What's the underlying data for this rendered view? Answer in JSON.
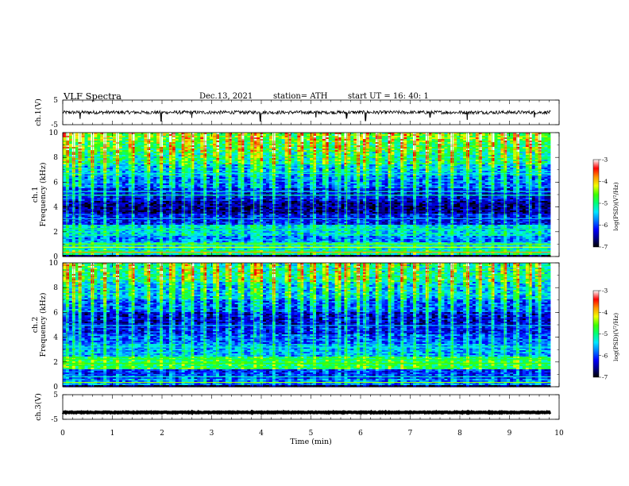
{
  "header": {
    "title": "VLF  Spectra",
    "date": "Dec.13, 2021",
    "station": "station= ATH",
    "start": "start  UT  =    16: 40: 1"
  },
  "colors": {
    "colormap": [
      "#000000",
      "#00008a",
      "#0000ff",
      "#0078ff",
      "#00e8ff",
      "#00ff7a",
      "#3cff00",
      "#f0ff00",
      "#ff9600",
      "#ff0000",
      "#ffffff"
    ],
    "trace": "#000000"
  },
  "chart_data": [
    {
      "type": "line",
      "name": "ch1-waveform",
      "ylabel": "ch.1(V)",
      "ylim": [
        -5,
        5
      ],
      "yticks": [
        {
          "v": 5,
          "label": "5"
        },
        {
          "v": -5,
          "label": "-5"
        }
      ],
      "xlim": [
        0,
        10
      ],
      "xmax_data": 9.83,
      "baseline": 0,
      "noise_amplitude": 0.7,
      "spikes": [
        {
          "x": 0.35,
          "y": -2.6
        },
        {
          "x": 1.98,
          "y": -3.6
        },
        {
          "x": 2.6,
          "y": -2.2
        },
        {
          "x": 3.98,
          "y": -3.6
        },
        {
          "x": 5.1,
          "y": -2.0
        },
        {
          "x": 5.72,
          "y": -2.4
        },
        {
          "x": 6.1,
          "y": -3.4
        },
        {
          "x": 7.4,
          "y": -2.0
        },
        {
          "x": 8.15,
          "y": -3.0
        },
        {
          "x": 9.5,
          "y": -2.0
        }
      ]
    },
    {
      "type": "heatmap",
      "name": "ch1-spectrogram",
      "ylabel": "ch.1\nFrequency  (kHz)",
      "xlim": [
        0,
        10
      ],
      "xmax_data": 9.83,
      "ylim": [
        0,
        10
      ],
      "yticks": [
        {
          "v": 0,
          "label": "0"
        },
        {
          "v": 2,
          "label": "2"
        },
        {
          "v": 4,
          "label": "4"
        },
        {
          "v": 6,
          "label": "6"
        },
        {
          "v": 8,
          "label": "8"
        },
        {
          "v": 10,
          "label": "10"
        }
      ],
      "colorbar": {
        "label": "log(PSD)(V²/Hz)",
        "range": [
          -7,
          -3
        ],
        "ticks": [
          {
            "v": -3,
            "label": "-3"
          },
          {
            "v": -4,
            "label": "-4"
          },
          {
            "v": -5,
            "label": "-5"
          },
          {
            "v": -6,
            "label": "-6"
          },
          {
            "v": -7,
            "label": "-7"
          }
        ]
      },
      "bands": [
        {
          "f": [
            0,
            0.15
          ],
          "v": -7
        },
        {
          "f": [
            0.15,
            0.5
          ],
          "v": -5.2
        },
        {
          "f": [
            0.5,
            1.2
          ],
          "v": -5.4
        },
        {
          "f": [
            1.2,
            1.7
          ],
          "v": -5.9
        },
        {
          "f": [
            1.7,
            2.6
          ],
          "v": -5.5
        },
        {
          "f": [
            2.6,
            3.4
          ],
          "v": -6.3
        },
        {
          "f": [
            3.4,
            4.5
          ],
          "v": -6.7
        },
        {
          "f": [
            4.5,
            5.5
          ],
          "v": -6.4
        },
        {
          "f": [
            5.5,
            6.5
          ],
          "v": -6.0
        },
        {
          "f": [
            6.5,
            7.5
          ],
          "v": -5.7
        },
        {
          "f": [
            7.5,
            8.5
          ],
          "v": -5.3
        },
        {
          "f": [
            8.5,
            9.3
          ],
          "v": -5.0
        },
        {
          "f": [
            9.3,
            10
          ],
          "v": -4.8
        }
      ],
      "lines": [
        {
          "f": 0.35,
          "v": -3.8
        },
        {
          "f": 0.75,
          "v": -4.2
        },
        {
          "f": 1.0,
          "v": -4.5
        },
        {
          "f": 2.2,
          "v": -5.0
        },
        {
          "f": 3.05,
          "v": -5.6
        },
        {
          "f": 4.95,
          "v": -5.1
        },
        {
          "f": 5.25,
          "v": -5.3
        },
        {
          "f": 6.7,
          "v": -5.3
        }
      ],
      "sferics": [
        0.08,
        0.22,
        0.35,
        0.6,
        0.85,
        1.1,
        1.4,
        1.72,
        1.98,
        2.2,
        2.45,
        2.6,
        2.85,
        3.1,
        3.35,
        3.6,
        3.85,
        3.98,
        4.25,
        4.55,
        4.8,
        5.05,
        5.3,
        5.55,
        5.72,
        5.95,
        6.1,
        6.35,
        6.6,
        6.85,
        7.1,
        7.35,
        7.6,
        7.85,
        8.15,
        8.4,
        8.65,
        8.9,
        9.15,
        9.4,
        9.6
      ]
    },
    {
      "type": "heatmap",
      "name": "ch2-spectrogram",
      "ylabel": "ch.2\nFrequency  (kHz)",
      "xlim": [
        0,
        10
      ],
      "xmax_data": 9.83,
      "ylim": [
        0,
        10
      ],
      "yticks": [
        {
          "v": 0,
          "label": "0"
        },
        {
          "v": 2,
          "label": "2"
        },
        {
          "v": 4,
          "label": "4"
        },
        {
          "v": 6,
          "label": "6"
        },
        {
          "v": 8,
          "label": "8"
        },
        {
          "v": 10,
          "label": "10"
        }
      ],
      "colorbar": {
        "label": "log(PSD)(V²/Hz)",
        "range": [
          -7,
          -3
        ],
        "ticks": [
          {
            "v": -3,
            "label": "-3"
          },
          {
            "v": -4,
            "label": "-4"
          },
          {
            "v": -5,
            "label": "-5"
          },
          {
            "v": -6,
            "label": "-6"
          },
          {
            "v": -7,
            "label": "-7"
          }
        ]
      },
      "bands": [
        {
          "f": [
            0,
            0.15
          ],
          "v": -7
        },
        {
          "f": [
            0.15,
            0.6
          ],
          "v": -5.9
        },
        {
          "f": [
            0.6,
            1.4
          ],
          "v": -6.2
        },
        {
          "f": [
            1.4,
            2.4
          ],
          "v": -5.0
        },
        {
          "f": [
            2.4,
            3.4
          ],
          "v": -5.7
        },
        {
          "f": [
            3.4,
            4.2
          ],
          "v": -6.0
        },
        {
          "f": [
            4.2,
            5.0
          ],
          "v": -6.3
        },
        {
          "f": [
            5.0,
            6.0
          ],
          "v": -6.5
        },
        {
          "f": [
            6.0,
            7.0
          ],
          "v": -6.1
        },
        {
          "f": [
            7.0,
            8.5
          ],
          "v": -5.7
        },
        {
          "f": [
            8.5,
            10
          ],
          "v": -5.3
        }
      ],
      "lines": [
        {
          "f": 0.35,
          "v": -4.4
        },
        {
          "f": 0.8,
          "v": -5.2
        },
        {
          "f": 1.9,
          "v": -4.6
        },
        {
          "f": 2.2,
          "v": -4.8
        },
        {
          "f": 3.2,
          "v": -5.3
        },
        {
          "f": 4.95,
          "v": -5.6
        }
      ],
      "sferics": [
        0.08,
        0.22,
        0.35,
        0.6,
        0.85,
        1.1,
        1.4,
        1.72,
        1.98,
        2.2,
        2.45,
        2.6,
        2.85,
        3.1,
        3.35,
        3.6,
        3.85,
        3.98,
        4.25,
        4.55,
        4.8,
        5.05,
        5.3,
        5.55,
        5.72,
        5.95,
        6.1,
        6.35,
        6.6,
        6.85,
        7.1,
        7.35,
        7.6,
        7.85,
        8.15,
        8.4,
        8.65,
        8.9,
        9.15,
        9.4,
        9.6
      ]
    },
    {
      "type": "line",
      "name": "ch3-waveform",
      "ylabel": "ch.3(V)",
      "ylim": [
        -5,
        5
      ],
      "yticks": [
        {
          "v": 5,
          "label": "5"
        },
        {
          "v": -5,
          "label": "-5"
        }
      ],
      "xlim": [
        0,
        10
      ],
      "xmax_data": 9.83,
      "baseline": -2.2,
      "noise_amplitude": 0.15,
      "xlabel": "Time  (min)",
      "xticks": [
        {
          "v": 0,
          "label": "0"
        },
        {
          "v": 1,
          "label": "1"
        },
        {
          "v": 2,
          "label": "2"
        },
        {
          "v": 3,
          "label": "3"
        },
        {
          "v": 4,
          "label": "4"
        },
        {
          "v": 5,
          "label": "5"
        },
        {
          "v": 6,
          "label": "6"
        },
        {
          "v": 7,
          "label": "7"
        },
        {
          "v": 8,
          "label": "8"
        },
        {
          "v": 9,
          "label": "9"
        },
        {
          "v": 10,
          "label": "10"
        }
      ]
    }
  ]
}
